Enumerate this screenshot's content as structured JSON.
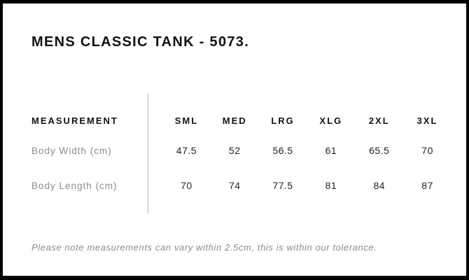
{
  "page": {
    "title": "MENS CLASSIC TANK - 5073.",
    "note": "Please note measurements can vary within 2.5cm, this is within our tolerance."
  },
  "table": {
    "header_label": "MEASUREMENT",
    "sizes": [
      "SML",
      "MED",
      "LRG",
      "XLG",
      "2XL",
      "3XL"
    ],
    "rows": [
      {
        "label": "Body Width (cm)",
        "values": [
          "47.5",
          "52",
          "56.5",
          "61",
          "65.5",
          "70"
        ]
      },
      {
        "label": "Body Length (cm)",
        "values": [
          "70",
          "74",
          "77.5",
          "81",
          "84",
          "87"
        ]
      }
    ]
  },
  "colors": {
    "background": "#ffffff",
    "frame_border": "#000000",
    "title_text": "#111111",
    "header_text": "#111111",
    "value_text": "#222222",
    "muted_text": "#8c8c8c",
    "divider": "#b3b3b3"
  }
}
